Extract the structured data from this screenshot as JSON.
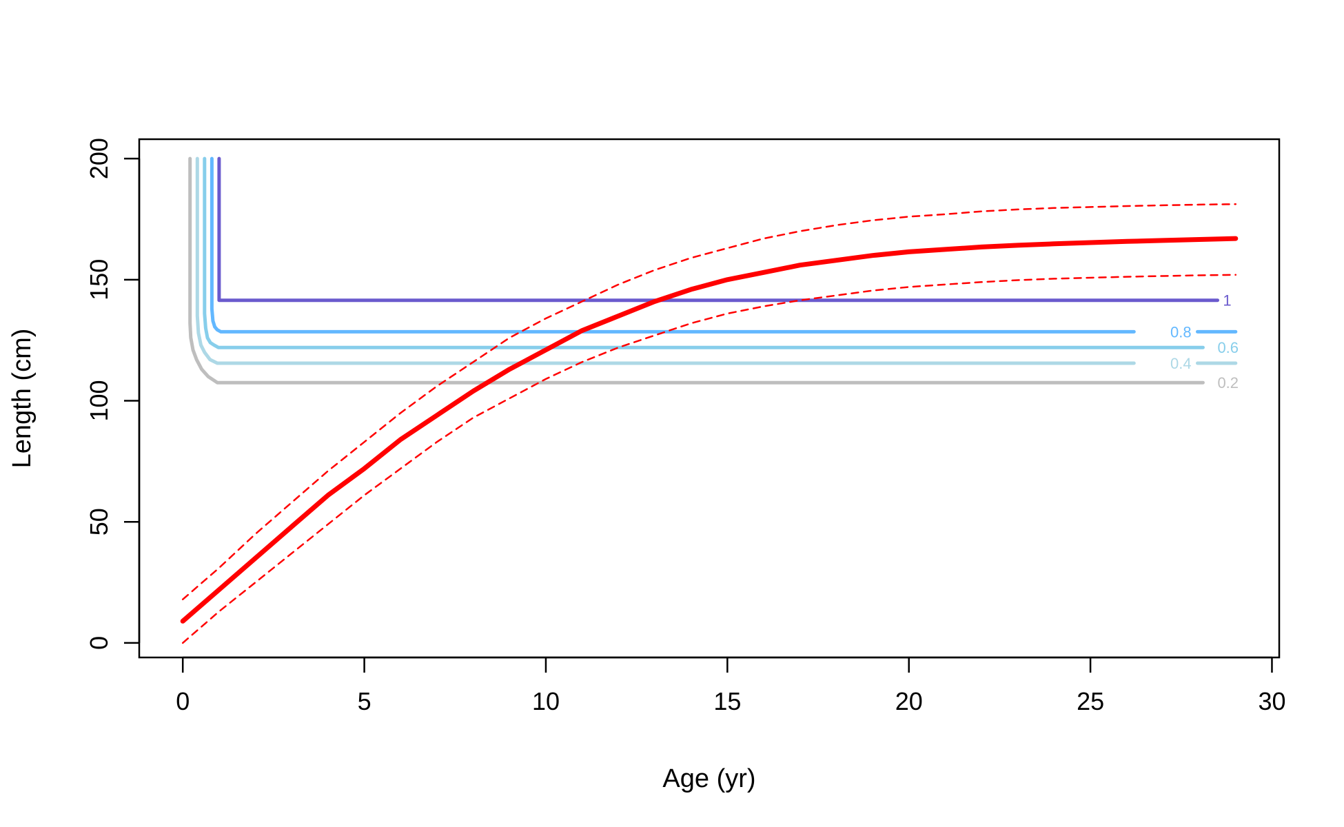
{
  "chart_data": {
    "type": "line",
    "title": "",
    "xlabel": "Age (yr)",
    "ylabel": "Length (cm)",
    "xlim": [
      -1.2,
      30.2
    ],
    "ylim": [
      -6,
      208
    ],
    "xticks": [
      0,
      5,
      10,
      15,
      20,
      25,
      30
    ],
    "yticks": [
      0,
      50,
      100,
      150,
      200
    ],
    "grid": false,
    "legend": "none",
    "series": [
      {
        "kind": "growth-mean",
        "color": "#ff0000",
        "dash": false,
        "x": [
          0,
          1,
          2,
          3,
          4,
          5,
          6,
          7,
          8,
          9,
          10,
          11,
          12,
          13,
          14,
          15,
          16,
          17,
          18,
          19,
          20,
          21,
          22,
          23,
          24,
          25,
          26,
          27,
          28,
          29
        ],
        "y": [
          9,
          22,
          35,
          48,
          61,
          72,
          84,
          94,
          104,
          113,
          121,
          129,
          135,
          141,
          146,
          150,
          153,
          156,
          158,
          160,
          161.5,
          162.5,
          163.5,
          164.2,
          164.8,
          165.3,
          165.8,
          166.2,
          166.6,
          167
        ]
      },
      {
        "kind": "growth-upper",
        "color": "#ff0000",
        "dash": true,
        "x": [
          0,
          1,
          2,
          3,
          4,
          5,
          6,
          7,
          8,
          9,
          10,
          11,
          12,
          13,
          14,
          15,
          16,
          17,
          18,
          19,
          20,
          21,
          22,
          23,
          24,
          25,
          26,
          27,
          28,
          29
        ],
        "y": [
          18,
          31,
          45,
          58,
          71,
          83,
          95,
          106,
          116,
          126,
          134,
          141,
          148,
          154,
          159,
          163,
          167,
          170,
          172.5,
          174.5,
          176,
          177,
          178.2,
          179,
          179.6,
          180,
          180.4,
          180.7,
          181,
          181.2
        ]
      },
      {
        "kind": "growth-lower",
        "color": "#ff0000",
        "dash": true,
        "x": [
          0,
          1,
          2,
          3,
          4,
          5,
          6,
          7,
          8,
          9,
          10,
          11,
          12,
          13,
          14,
          15,
          16,
          17,
          18,
          19,
          20,
          21,
          22,
          23,
          24,
          25,
          26,
          27,
          28,
          29
        ],
        "y": [
          0,
          13,
          25,
          37,
          49,
          61,
          72,
          83,
          93,
          101,
          109,
          116,
          122,
          127,
          132,
          136,
          139,
          141.5,
          143.5,
          145.5,
          147,
          148,
          149,
          149.8,
          150.4,
          150.8,
          151.2,
          151.5,
          151.8,
          152
        ]
      }
    ],
    "contours": [
      {
        "level": "0.2",
        "color": "#bebebe",
        "x": [
          0.2,
          0.2,
          0.22,
          0.28,
          0.38,
          0.52,
          0.7,
          0.95,
          28.1
        ],
        "y": [
          200,
          132,
          126,
          121,
          117,
          113,
          110,
          107.5,
          107.5
        ],
        "label_x": 28.5,
        "label_y": 107.5,
        "segment_x": [],
        "segment_y": []
      },
      {
        "level": "0.4",
        "color": "#add8e6",
        "x": [
          0.4,
          0.4,
          0.43,
          0.5,
          0.6,
          0.75,
          0.95,
          26.2
        ],
        "y": [
          200,
          135,
          128,
          123,
          120,
          117,
          115.5,
          115.5
        ],
        "label_x": 27.2,
        "label_y": 115.5,
        "segment_x": [
          27.95,
          29
        ],
        "segment_y": [
          115.5,
          115.5
        ]
      },
      {
        "level": "0.6",
        "color": "#87ceeb",
        "x": [
          0.6,
          0.6,
          0.63,
          0.68,
          0.76,
          0.86,
          0.98,
          28.1
        ],
        "y": [
          200,
          136,
          130,
          126,
          124,
          123,
          122,
          122
        ],
        "label_x": 28.5,
        "label_y": 122,
        "segment_x": [],
        "segment_y": []
      },
      {
        "level": "0.8",
        "color": "#63b8ff",
        "x": [
          0.8,
          0.8,
          0.83,
          0.88,
          0.95,
          1.05,
          26.2
        ],
        "y": [
          200,
          138,
          133,
          130.5,
          129.3,
          128.5,
          128.5
        ],
        "label_x": 27.2,
        "label_y": 128.5,
        "segment_x": [
          27.95,
          29
        ],
        "segment_y": [
          128.5,
          128.5
        ]
      },
      {
        "level": "1",
        "color": "#6a5acd",
        "x": [
          1,
          1,
          28.5
        ],
        "y": [
          200,
          141.5,
          141.5
        ],
        "label_x": 28.65,
        "label_y": 141.5,
        "segment_x": [],
        "segment_y": []
      }
    ]
  }
}
